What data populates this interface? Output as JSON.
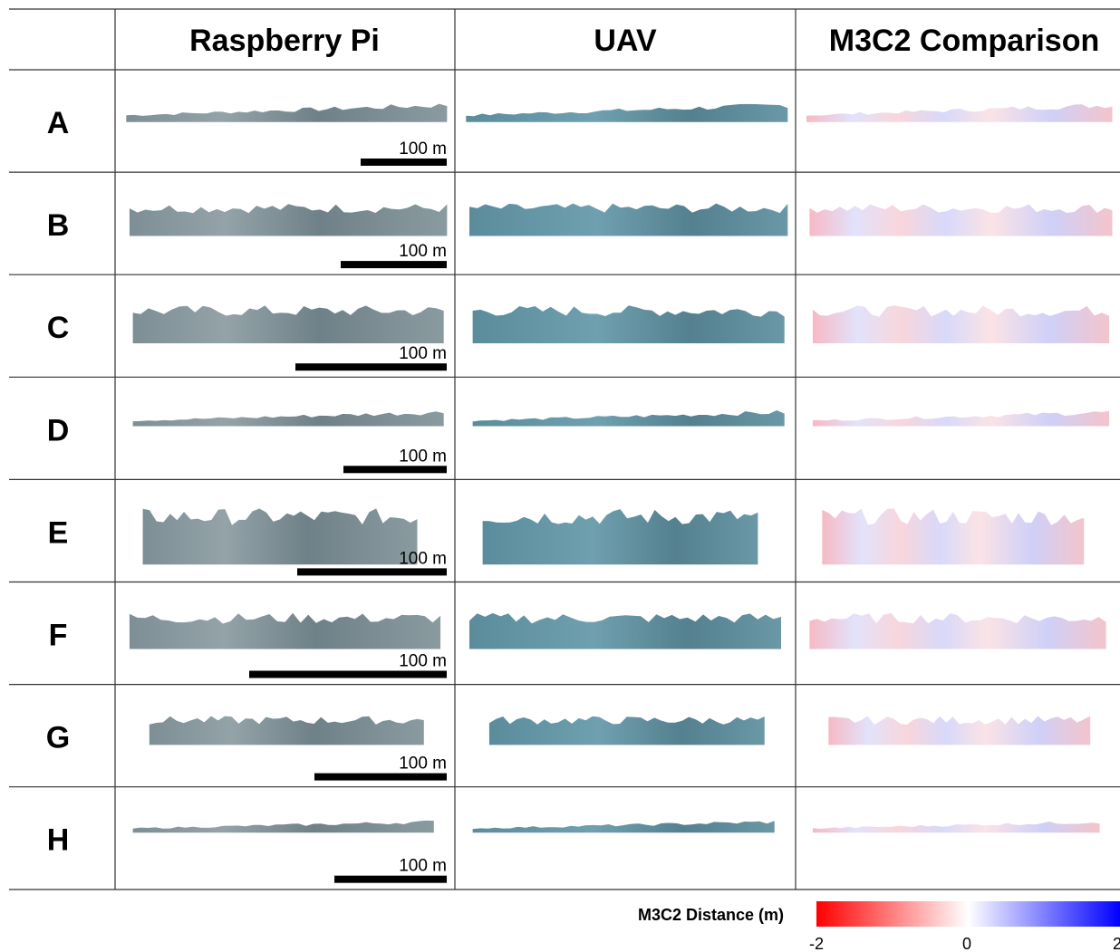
{
  "header": {
    "columns": [
      "Raspberry Pi",
      "UAV",
      "M3C2 Comparison"
    ]
  },
  "rows": [
    {
      "label": "A",
      "scale_label": "100 m"
    },
    {
      "label": "B",
      "scale_label": "100 m"
    },
    {
      "label": "C",
      "scale_label": "100 m"
    },
    {
      "label": "D",
      "scale_label": "100 m"
    },
    {
      "label": "E",
      "scale_label": "100 m"
    },
    {
      "label": "F",
      "scale_label": "100 m"
    },
    {
      "label": "G",
      "scale_label": "100 m"
    },
    {
      "label": "H",
      "scale_label": "100 m"
    }
  ],
  "colorbar": {
    "label": "M3C2 Distance (m)",
    "lim": [
      -2,
      2
    ],
    "ticks": [
      -2,
      0,
      2
    ]
  }
}
